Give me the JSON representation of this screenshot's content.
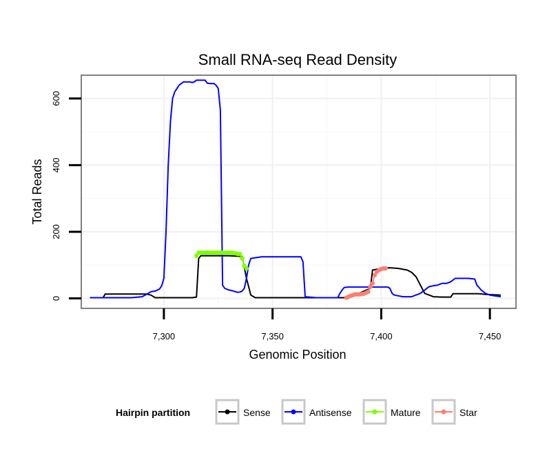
{
  "chart_data": {
    "type": "line",
    "title": "Small RNA-seq Read Density",
    "xlabel": "Genomic Position",
    "ylabel": "Total Reads",
    "xlim": [
      7262,
      7462
    ],
    "ylim": [
      -30,
      670
    ],
    "x_ticks": [
      7300,
      7350,
      7400,
      7450
    ],
    "x_tick_labels": [
      "7,300",
      "7,350",
      "7,400",
      "7,450"
    ],
    "y_ticks": [
      0,
      200,
      400,
      600
    ],
    "y_tick_labels": [
      "0",
      "200",
      "400",
      "600"
    ],
    "grid": true,
    "legend": {
      "title": "Hairpin partition",
      "position": "bottom",
      "entries": [
        {
          "name": "Sense",
          "color": "#000000"
        },
        {
          "name": "Antisense",
          "color": "#0000ff"
        },
        {
          "name": "Mature",
          "color": "#7fff00"
        },
        {
          "name": "Star",
          "color": "#fa8072"
        }
      ]
    },
    "series": [
      {
        "name": "Sense",
        "color": "#000000",
        "points": false,
        "x": [
          7266,
          7272,
          7273,
          7292,
          7294,
          7296,
          7313,
          7315,
          7316,
          7317,
          7329,
          7330,
          7336,
          7338,
          7340,
          7342,
          7385,
          7386,
          7395,
          7396,
          7400,
          7404,
          7408,
          7412,
          7414,
          7416,
          7418,
          7420,
          7422,
          7424,
          7428,
          7432,
          7433,
          7445,
          7448,
          7455
        ],
        "y": [
          2,
          2,
          13,
          13,
          10,
          2,
          2,
          4,
          120,
          128,
          128,
          128,
          126,
          60,
          10,
          2,
          2,
          5,
          30,
          85,
          90,
          92,
          90,
          85,
          78,
          65,
          40,
          15,
          10,
          5,
          4,
          4,
          14,
          14,
          12,
          10
        ]
      },
      {
        "name": "Antisense",
        "color": "#0000ff",
        "points": false,
        "x": [
          7266,
          7285,
          7290,
          7292,
          7294,
          7296,
          7297,
          7298,
          7299,
          7300,
          7301,
          7302,
          7303,
          7304,
          7305,
          7307,
          7309,
          7311,
          7312,
          7313,
          7314,
          7315,
          7316,
          7317,
          7318,
          7319,
          7320,
          7321,
          7322,
          7323,
          7324,
          7325,
          7326,
          7327,
          7328,
          7330,
          7332,
          7333,
          7334,
          7335,
          7336,
          7337,
          7338,
          7339,
          7340,
          7345,
          7363,
          7364,
          7365,
          7370,
          7380,
          7381,
          7382,
          7383,
          7385,
          7395,
          7397,
          7398,
          7400,
          7401,
          7402,
          7403,
          7404,
          7405,
          7406,
          7410,
          7412,
          7414,
          7416,
          7418,
          7420,
          7422,
          7424,
          7426,
          7428,
          7430,
          7432,
          7434,
          7440,
          7443,
          7444,
          7446,
          7448,
          7450,
          7452,
          7455
        ],
        "y": [
          2,
          2,
          5,
          12,
          20,
          22,
          25,
          28,
          38,
          60,
          200,
          400,
          530,
          600,
          620,
          640,
          650,
          650,
          650,
          648,
          650,
          655,
          655,
          655,
          655,
          655,
          646,
          645,
          645,
          645,
          640,
          630,
          565,
          40,
          30,
          25,
          22,
          20,
          18,
          19,
          22,
          30,
          60,
          100,
          120,
          125,
          125,
          110,
          5,
          2,
          2,
          15,
          25,
          33,
          34,
          34,
          34,
          34,
          34,
          34,
          34,
          34,
          30,
          15,
          10,
          5,
          5,
          5,
          10,
          15,
          25,
          35,
          38,
          40,
          45,
          45,
          50,
          60,
          60,
          58,
          40,
          25,
          15,
          10,
          8,
          5
        ]
      },
      {
        "name": "Mature",
        "color": "#7fff00",
        "points": true,
        "x": [
          7315,
          7316,
          7317,
          7318,
          7319,
          7320,
          7321,
          7322,
          7323,
          7324,
          7325,
          7326,
          7327,
          7328,
          7329,
          7330,
          7331,
          7332,
          7333,
          7334,
          7335,
          7336,
          7337,
          7338
        ],
        "y": [
          128,
          137,
          137,
          137,
          137,
          137,
          137,
          137,
          137,
          137,
          137,
          137,
          137,
          137,
          137,
          137,
          137,
          136,
          135,
          133,
          133,
          120,
          98,
          90
        ]
      },
      {
        "name": "Star",
        "color": "#fa8072",
        "points": true,
        "x": [
          7384,
          7385,
          7386,
          7387,
          7388,
          7389,
          7390,
          7391,
          7392,
          7393,
          7394,
          7395,
          7396,
          7397,
          7398,
          7399,
          7400,
          7401,
          7402
        ],
        "y": [
          2,
          5,
          8,
          10,
          12,
          12,
          12,
          13,
          14,
          17,
          20,
          35,
          45,
          70,
          80,
          85,
          88,
          90,
          90
        ]
      }
    ]
  }
}
